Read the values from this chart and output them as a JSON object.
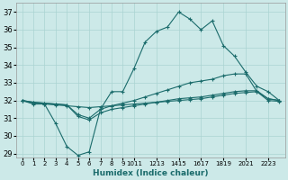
{
  "xlabel": "Humidex (Indice chaleur)",
  "ylabel": "",
  "xlim": [
    -0.5,
    23.5
  ],
  "ylim": [
    28.8,
    37.5
  ],
  "yticks": [
    29,
    30,
    31,
    32,
    33,
    34,
    35,
    36,
    37
  ],
  "background_color": "#cce9e8",
  "grid_color": "#aad4d2",
  "line_color": "#1a6b6b",
  "line1_x": [
    0,
    1,
    2,
    3,
    4,
    5,
    6,
    7,
    8,
    9,
    10,
    11,
    12,
    13,
    14,
    15,
    16,
    17,
    18,
    19,
    20,
    21,
    22,
    23
  ],
  "line1_y": [
    32.0,
    31.8,
    31.8,
    30.7,
    29.4,
    28.9,
    29.1,
    31.5,
    32.5,
    32.5,
    33.8,
    35.3,
    35.9,
    36.15,
    37.0,
    36.6,
    36.0,
    36.5,
    35.1,
    34.5,
    33.6,
    32.8,
    32.5,
    32.0
  ],
  "line2_x": [
    0,
    1,
    2,
    3,
    4,
    5,
    6,
    7,
    8,
    9,
    10,
    11,
    12,
    13,
    14,
    15,
    16,
    17,
    18,
    19,
    20,
    21,
    22,
    23
  ],
  "line2_y": [
    32.0,
    31.9,
    31.85,
    31.8,
    31.75,
    31.2,
    31.0,
    31.5,
    31.7,
    31.85,
    32.0,
    32.2,
    32.4,
    32.6,
    32.8,
    33.0,
    33.1,
    33.2,
    33.4,
    33.5,
    33.5,
    32.5,
    32.0,
    31.95
  ],
  "line3_x": [
    0,
    1,
    2,
    3,
    4,
    5,
    6,
    7,
    8,
    9,
    10,
    11,
    12,
    13,
    14,
    15,
    16,
    17,
    18,
    19,
    20,
    21,
    22,
    23
  ],
  "line3_y": [
    32.0,
    31.9,
    31.85,
    31.8,
    31.75,
    31.1,
    30.9,
    31.3,
    31.5,
    31.6,
    31.7,
    31.8,
    31.9,
    32.0,
    32.1,
    32.15,
    32.2,
    32.3,
    32.4,
    32.5,
    32.55,
    32.55,
    32.1,
    32.0
  ],
  "line4_x": [
    0,
    1,
    2,
    3,
    4,
    5,
    6,
    7,
    8,
    9,
    10,
    11,
    12,
    13,
    14,
    15,
    16,
    17,
    18,
    19,
    20,
    21,
    22,
    23
  ],
  "line4_y": [
    32.0,
    31.85,
    31.8,
    31.75,
    31.7,
    31.65,
    31.6,
    31.65,
    31.7,
    31.75,
    31.8,
    31.85,
    31.9,
    31.95,
    32.0,
    32.05,
    32.1,
    32.2,
    32.3,
    32.4,
    32.45,
    32.5,
    32.1,
    32.0
  ],
  "xtick_positions": [
    0,
    1,
    2,
    3,
    4,
    5,
    6,
    7,
    8,
    9,
    10,
    12,
    14,
    16,
    18,
    20,
    22
  ],
  "xtick_labels": [
    "0",
    "1",
    "2",
    "3",
    "4",
    "5",
    "6",
    "7",
    "8",
    "9",
    "1011",
    "1213",
    "1415",
    "1617",
    "1819",
    "2021",
    "2223"
  ]
}
